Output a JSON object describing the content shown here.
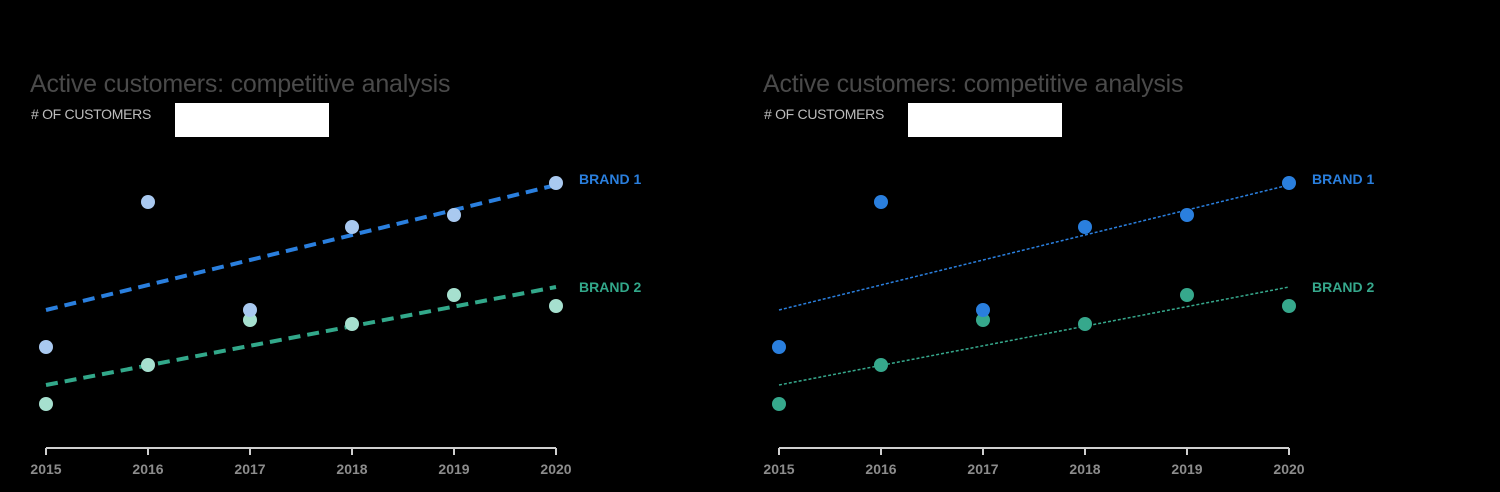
{
  "chart_data": [
    {
      "type": "scatter",
      "title": "Active customers: competitive analysis",
      "ylabel": "# OF CUSTOMERS",
      "xlabel": "",
      "x": [
        2015,
        2016,
        2017,
        2018,
        2019,
        2020
      ],
      "series": [
        {
          "name": "BRAND 1",
          "values": [
            101,
            246,
            138,
            221,
            233,
            265
          ],
          "color": "#a9c9f0",
          "trend_color": "#2a7fde",
          "trend": [
            138,
            263
          ],
          "trend_style": "thick-dashed"
        },
        {
          "name": "BRAND 2",
          "values": [
            44,
            83,
            128,
            124,
            153,
            142
          ],
          "color": "#a6e0cf",
          "trend_color": "#32a88a",
          "trend": [
            63,
            161
          ],
          "trend_style": "thick-dashed"
        }
      ],
      "ylim": [
        0,
        300
      ],
      "grid": false,
      "legend": "direct labels at right"
    },
    {
      "type": "scatter",
      "title": "Active customers: competitive analysis",
      "ylabel": "# OF CUSTOMERS",
      "xlabel": "",
      "x": [
        2015,
        2016,
        2017,
        2018,
        2019,
        2020
      ],
      "series": [
        {
          "name": "BRAND 1",
          "values": [
            101,
            246,
            138,
            221,
            233,
            265
          ],
          "color": "#2a7fde",
          "trend_color": "#2a7fde",
          "trend": [
            138,
            263
          ],
          "trend_style": "thin-dotted"
        },
        {
          "name": "BRAND 2",
          "values": [
            44,
            83,
            128,
            124,
            153,
            142
          ],
          "color": "#36a88c",
          "trend_color": "#36a88c",
          "trend": [
            63,
            161
          ],
          "trend_style": "thin-dotted"
        }
      ],
      "ylim": [
        0,
        300
      ],
      "grid": false,
      "legend": "direct labels at right"
    }
  ],
  "panels": [
    {
      "title": "Active customers: competitive analysis",
      "subtitle": "# OF CUSTOMERS",
      "brand1_label": "BRAND 1",
      "brand2_label": "BRAND 2"
    },
    {
      "title": "Active customers: competitive analysis",
      "subtitle": "# OF CUSTOMERS",
      "brand1_label": "BRAND 1",
      "brand2_label": "BRAND 2"
    }
  ],
  "x_ticks": [
    "2015",
    "2016",
    "2017",
    "2018",
    "2019",
    "2020"
  ]
}
